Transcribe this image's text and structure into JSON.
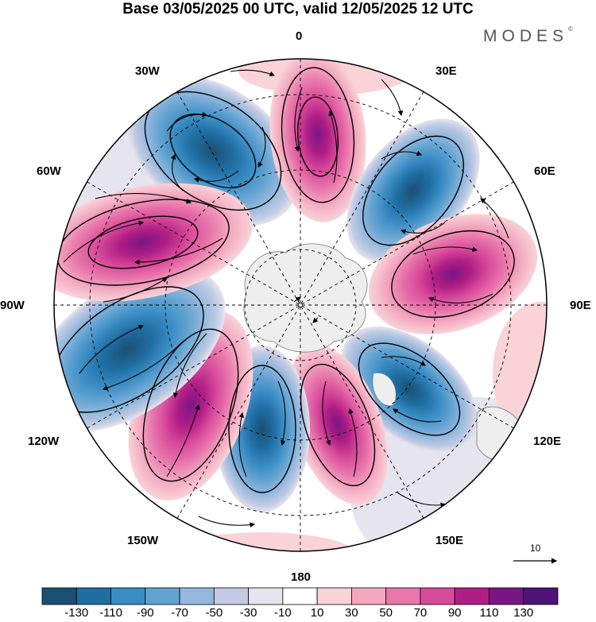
{
  "header": {
    "title": "Base 03/05/2025 00 UTC, valid 12/05/2025 12 UTC",
    "brand": "MODES",
    "brand_mark": "©"
  },
  "map": {
    "projection": "north-polar-stereographic",
    "longitude_labels": {
      "lon_0": "0",
      "lon_30e": "30E",
      "lon_60e": "60E",
      "lon_90e": "90E",
      "lon_120e": "120E",
      "lon_150e": "150E",
      "lon_180": "180",
      "lon_150w": "150W",
      "lon_120w": "120W",
      "lon_90w": "90W",
      "lon_60w": "60W",
      "lon_30w": "30W"
    },
    "reference_vector": "10",
    "field_colors": {
      "negative": "#2b6fa4",
      "positive": "#d8489a",
      "land": "#eeeeee"
    }
  },
  "colorbar": {
    "labels": [
      "-130",
      "-110",
      "-90",
      "-70",
      "-50",
      "-30",
      "-10",
      "10",
      "30",
      "50",
      "70",
      "90",
      "110",
      "130"
    ],
    "colors": [
      "#1b4f72",
      "#1f6ea3",
      "#3a8cc4",
      "#62a3d1",
      "#93b8dd",
      "#c2cbe3",
      "#e6e4ef",
      "#ffffff",
      "#f9d3d8",
      "#f3a8c0",
      "#e877ac",
      "#d84a9a",
      "#b01e85",
      "#7a1584",
      "#4e1377"
    ]
  }
}
